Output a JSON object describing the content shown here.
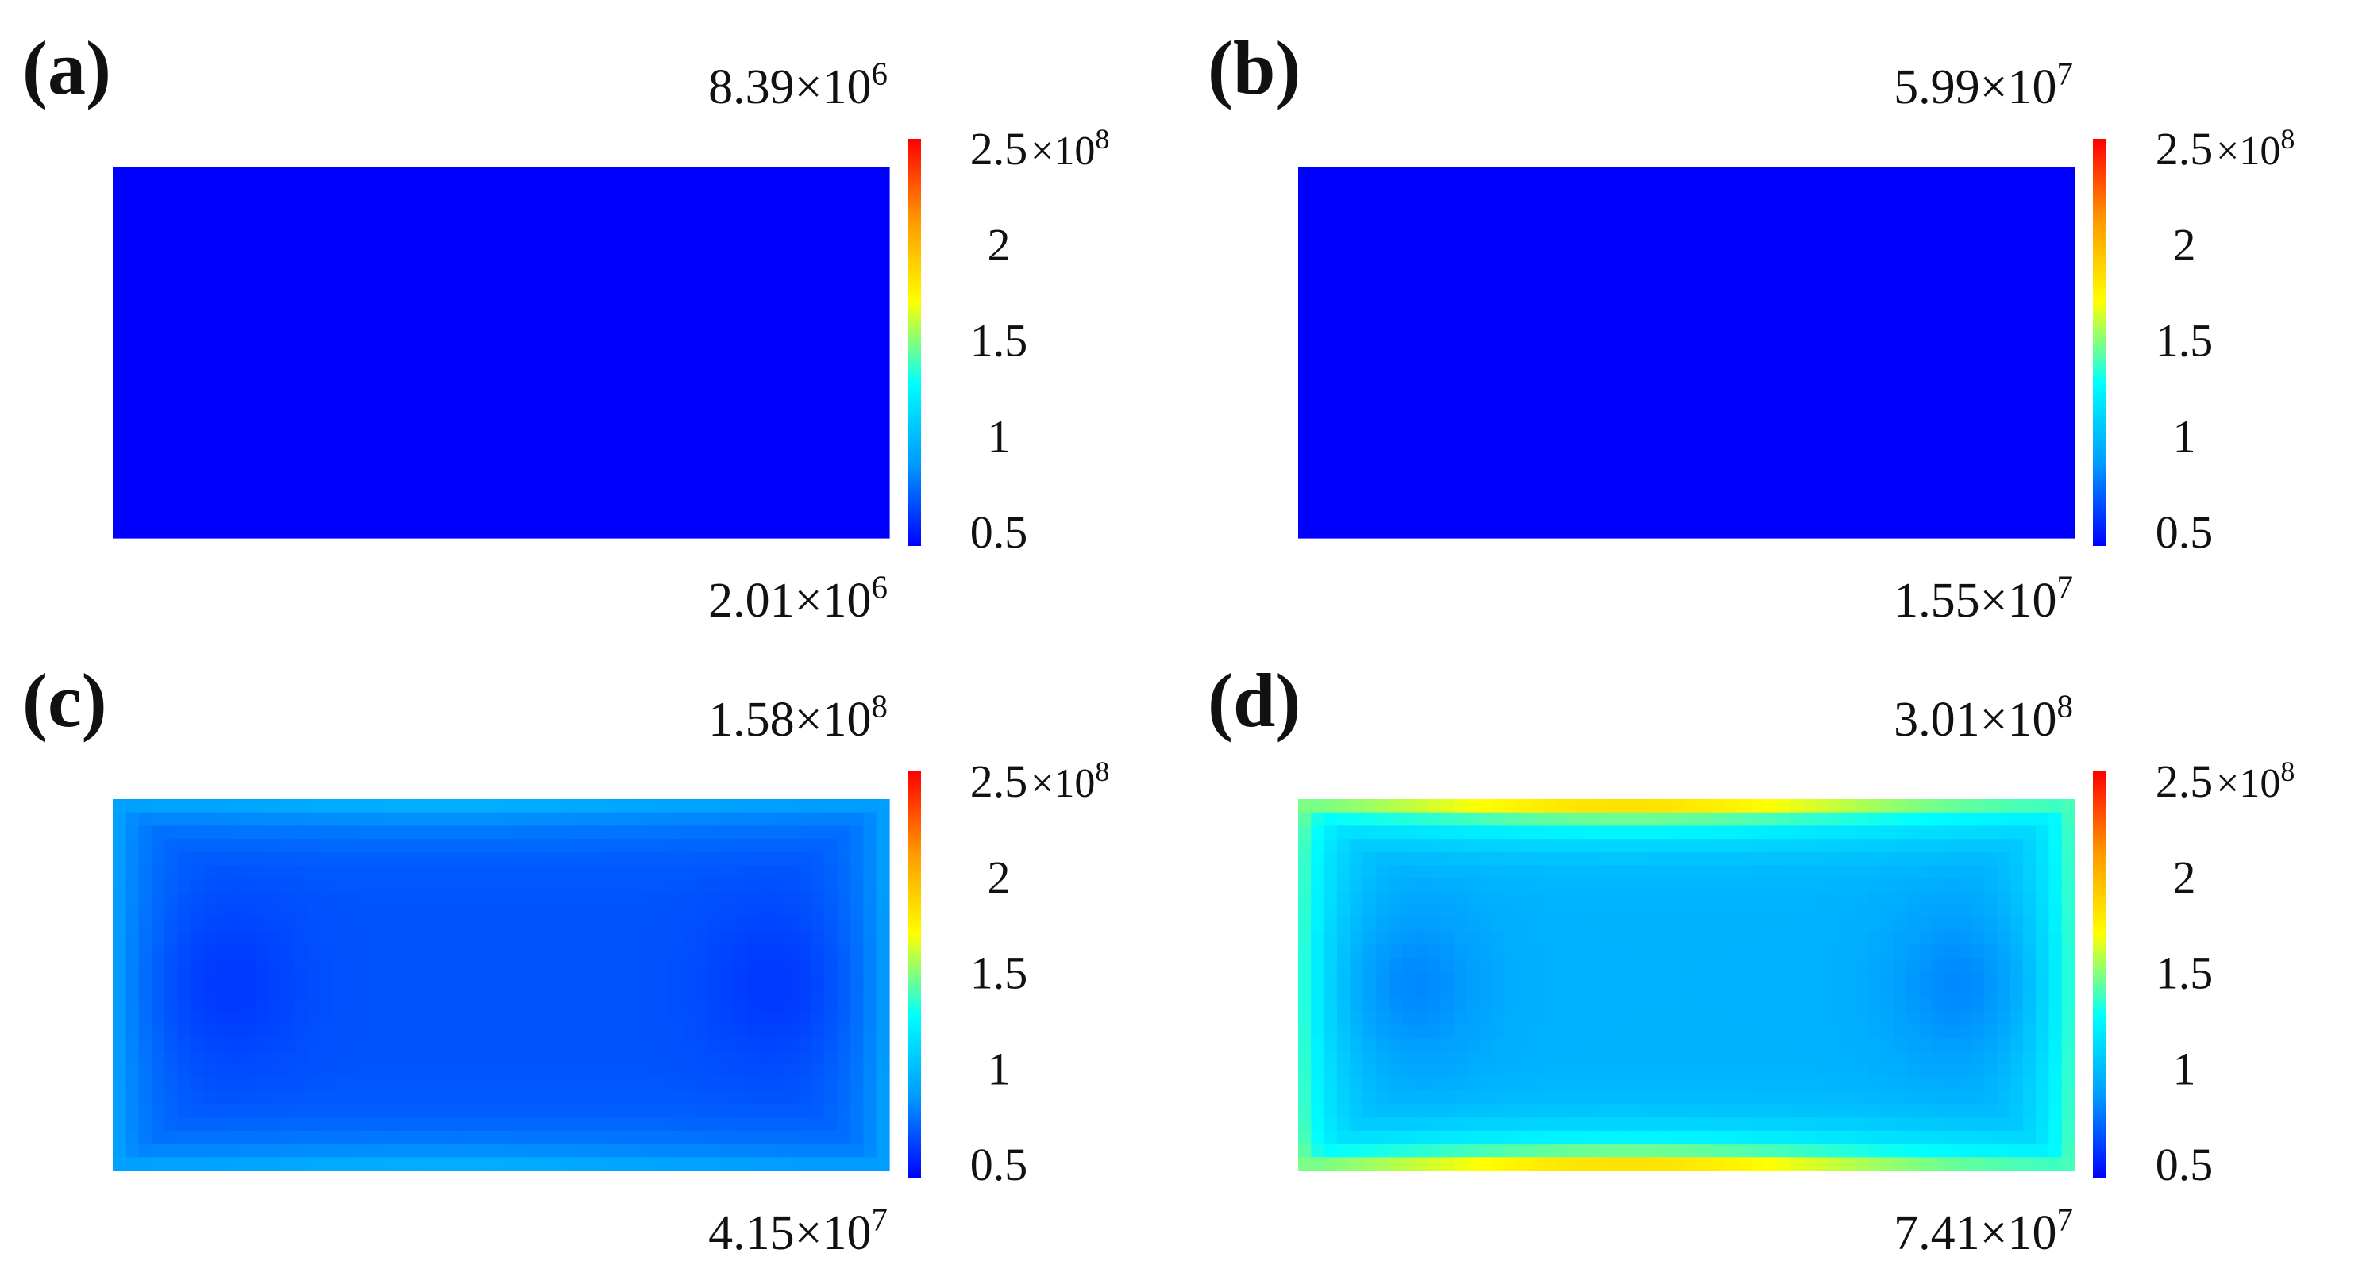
{
  "colors": {
    "colormap": [
      "#0000ff",
      "#0099ff",
      "#00ffff",
      "#ffff00",
      "#ff9900",
      "#ff0000"
    ],
    "text": "#111111"
  },
  "chart_data": [
    {
      "type": "heatmap",
      "panel_label": "(a)",
      "max_label": {
        "mantissa": "8.39",
        "base": "×10",
        "exp": "6"
      },
      "min_label": {
        "mantissa": "2.01",
        "base": "×10",
        "exp": "6"
      },
      "colorbar": {
        "ticks": [
          {
            "value": 0.5,
            "label": "0.5"
          },
          {
            "value": 1,
            "label": "1"
          },
          {
            "value": 1.5,
            "label": "1.5"
          },
          {
            "value": 2,
            "label": "2"
          },
          {
            "value": 2.5,
            "label": "2.5"
          }
        ],
        "multiplier": {
          "base": "×10",
          "exp": "8"
        },
        "range": [
          0.5,
          2.5
        ]
      },
      "field": {
        "base_value": 0.03,
        "edge_value": 0.04,
        "top_bottom_peak": 0.04
      }
    },
    {
      "type": "heatmap",
      "panel_label": "(b)",
      "max_label": {
        "mantissa": "5.99",
        "base": "×10",
        "exp": "7"
      },
      "min_label": {
        "mantissa": "1.55",
        "base": "×10",
        "exp": "7"
      },
      "colorbar": {
        "ticks": [
          {
            "value": 0.5,
            "label": "0.5"
          },
          {
            "value": 1,
            "label": "1"
          },
          {
            "value": 1.5,
            "label": "1.5"
          },
          {
            "value": 2,
            "label": "2"
          },
          {
            "value": 2.5,
            "label": "2.5"
          }
        ],
        "multiplier": {
          "base": "×10",
          "exp": "8"
        },
        "range": [
          0.5,
          2.5
        ]
      },
      "field": {
        "base_value": 0.2,
        "edge_value": 0.3,
        "top_bottom_peak": 0.32
      }
    },
    {
      "type": "heatmap",
      "panel_label": "(c)",
      "max_label": {
        "mantissa": "1.58",
        "base": "×10",
        "exp": "8"
      },
      "min_label": {
        "mantissa": "4.15",
        "base": "×10",
        "exp": "7"
      },
      "colorbar": {
        "ticks": [
          {
            "value": 0.5,
            "label": "0.5"
          },
          {
            "value": 1,
            "label": "1"
          },
          {
            "value": 1.5,
            "label": "1.5"
          },
          {
            "value": 2,
            "label": "2"
          },
          {
            "value": 2.5,
            "label": "2.5"
          }
        ],
        "multiplier": {
          "base": "×10",
          "exp": "8"
        },
        "range": [
          0.5,
          2.5
        ]
      },
      "field": {
        "base_value": 0.72,
        "edge_value": 0.95,
        "top_bottom_peak": 1.05
      }
    },
    {
      "type": "heatmap",
      "panel_label": "(d)",
      "max_label": {
        "mantissa": "3.01",
        "base": "×10",
        "exp": "8"
      },
      "min_label": {
        "mantissa": "7.41",
        "base": "×10",
        "exp": "7"
      },
      "colorbar": {
        "ticks": [
          {
            "value": 0.5,
            "label": "0.5"
          },
          {
            "value": 1,
            "label": "1"
          },
          {
            "value": 1.5,
            "label": "1.5"
          },
          {
            "value": 2,
            "label": "2"
          },
          {
            "value": 2.5,
            "label": "2.5"
          }
        ],
        "multiplier": {
          "base": "×10",
          "exp": "8"
        },
        "range": [
          0.5,
          2.5
        ]
      },
      "field": {
        "base_value": 1.0,
        "edge_value": 1.45,
        "top_bottom_peak": 2.05
      }
    }
  ]
}
